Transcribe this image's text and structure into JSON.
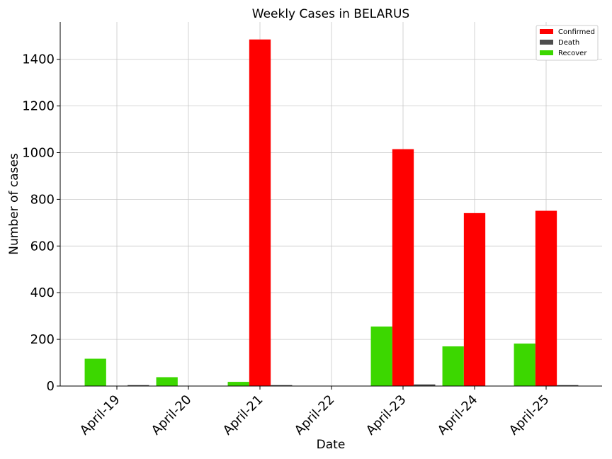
{
  "chart_data": {
    "type": "bar",
    "title": "Weekly Cases in BELARUS",
    "xlabel": "Date",
    "ylabel": "Number of cases",
    "categories": [
      "April-19",
      "April-20",
      "April-21",
      "April-22",
      "April-23",
      "April-24",
      "April-25"
    ],
    "series": [
      {
        "name": "Recover",
        "color": "#3cd700",
        "values": [
          117,
          38,
          18,
          0,
          255,
          170,
          182
        ]
      },
      {
        "name": "Confirmed",
        "color": "#ff0000",
        "values": [
          0,
          0,
          1485,
          0,
          1015,
          741,
          751
        ]
      },
      {
        "name": "Death",
        "color": "#4d4d4d",
        "values": [
          4,
          0,
          4,
          0,
          7,
          0,
          4
        ]
      }
    ],
    "legend_order": [
      "Confirmed",
      "Death",
      "Recover"
    ],
    "legend_position": "top-right",
    "yticks": [
      0,
      200,
      400,
      600,
      800,
      1000,
      1200,
      1400
    ],
    "ylim": [
      0,
      1560
    ],
    "grid": true
  }
}
